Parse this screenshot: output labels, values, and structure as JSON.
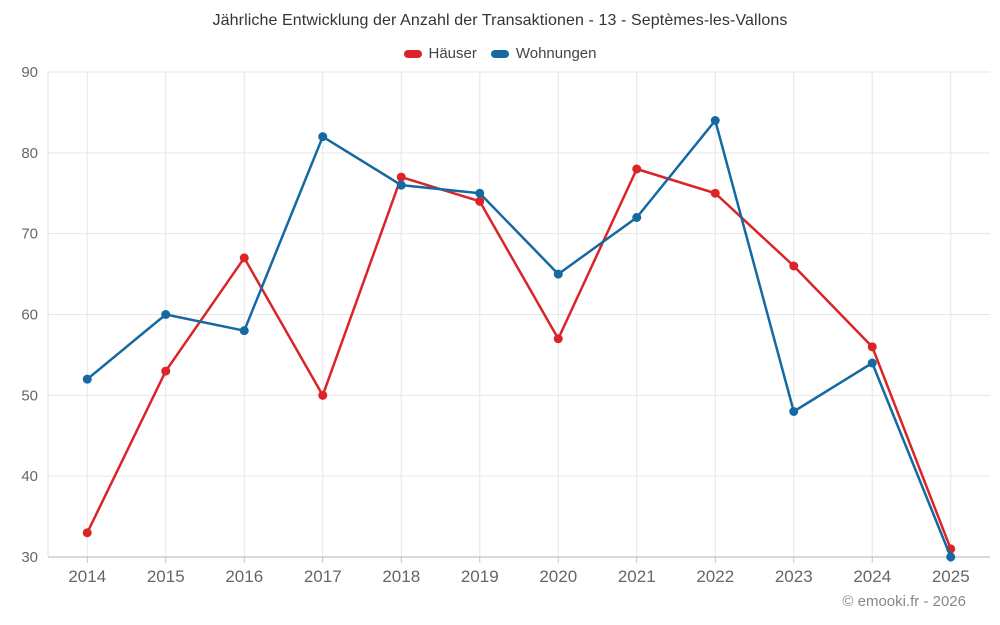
{
  "page": {
    "credits": "© emooki.fr - 2026"
  },
  "chart_data": {
    "type": "line",
    "title": "Jährliche Entwicklung der Anzahl der Transaktionen - 13 - Septèmes-les-Vallons",
    "categories": [
      "2014",
      "2015",
      "2016",
      "2017",
      "2018",
      "2019",
      "2020",
      "2021",
      "2022",
      "2023",
      "2024",
      "2025"
    ],
    "series": [
      {
        "name": "Häuser",
        "color": "#db2428",
        "values": [
          33,
          53,
          67,
          50,
          77,
          74,
          57,
          78,
          75,
          66,
          56,
          31
        ]
      },
      {
        "name": "Wohnungen",
        "color": "#1569a2",
        "values": [
          52,
          60,
          58,
          82,
          76,
          75,
          65,
          72,
          84,
          48,
          54,
          30
        ]
      }
    ],
    "xlabel": "",
    "ylabel": "",
    "ylim": [
      30,
      90
    ],
    "yticks": [
      30,
      40,
      50,
      60,
      70,
      80,
      90
    ],
    "grid": true,
    "legend_position": "top",
    "marker": "circle"
  },
  "theme": {
    "grid_color": "#e6e6e6",
    "axis_line_color": "#b3b3b3",
    "tick_color": "#c3c3c3",
    "axis_label_color": "#666666",
    "title_color": "#333333",
    "legend_text_color": "#444444",
    "credits_color": "#888888",
    "background": "#ffffff"
  }
}
